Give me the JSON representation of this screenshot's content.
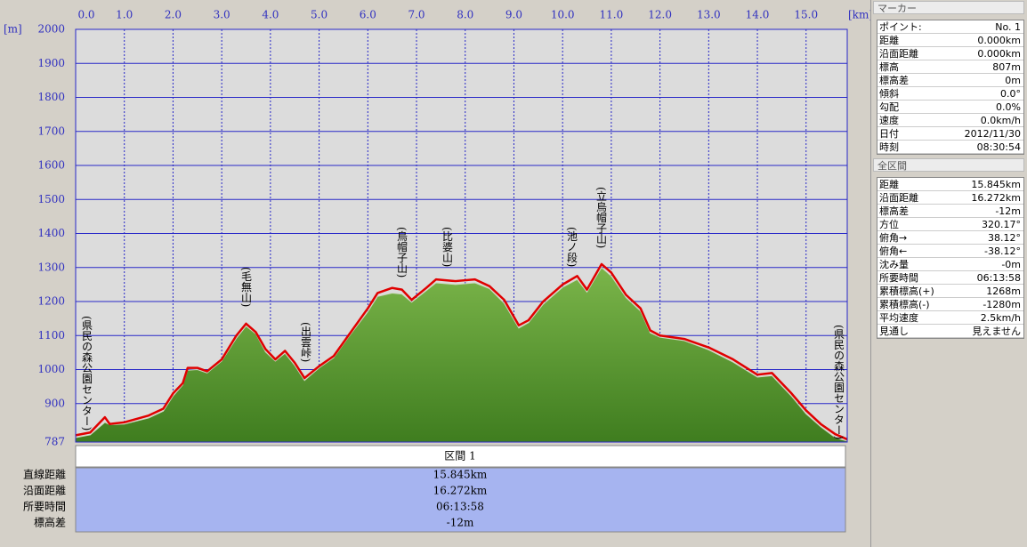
{
  "chart_data": {
    "type": "area",
    "x_unit": "[km]",
    "y_unit": "[m]",
    "x": [
      0,
      0.3,
      0.6,
      0.7,
      1.0,
      1.5,
      1.8,
      2.0,
      2.2,
      2.3,
      2.5,
      2.7,
      3.0,
      3.3,
      3.5,
      3.7,
      3.9,
      4.1,
      4.3,
      4.5,
      4.7,
      5.0,
      5.3,
      5.6,
      6.0,
      6.2,
      6.5,
      6.7,
      6.9,
      7.2,
      7.4,
      7.8,
      8.2,
      8.5,
      8.8,
      9.1,
      9.3,
      9.6,
      10.0,
      10.3,
      10.5,
      10.8,
      11.0,
      11.3,
      11.6,
      11.8,
      12.0,
      12.5,
      13.0,
      13.5,
      14.0,
      14.3,
      14.7,
      15.0,
      15.3,
      15.6,
      15.845
    ],
    "series": [
      {
        "type": "area",
        "color": "#5e9c2e",
        "values": [
          800,
          808,
          845,
          838,
          840,
          858,
          878,
          922,
          955,
          998,
          1000,
          990,
          1025,
          1092,
          1128,
          1105,
          1052,
          1025,
          1048,
          1012,
          968,
          1005,
          1035,
          1095,
          1170,
          1215,
          1225,
          1222,
          1198,
          1232,
          1255,
          1250,
          1255,
          1238,
          1195,
          1122,
          1138,
          1192,
          1242,
          1265,
          1228,
          1300,
          1275,
          1212,
          1172,
          1108,
          1095,
          1085,
          1058,
          1022,
          978,
          982,
          922,
          870,
          832,
          800,
          790
        ]
      },
      {
        "type": "line",
        "color": "#e00000",
        "values": [
          807,
          815,
          860,
          840,
          845,
          865,
          885,
          930,
          960,
          1005,
          1005,
          995,
          1030,
          1100,
          1135,
          1110,
          1060,
          1030,
          1055,
          1020,
          975,
          1010,
          1040,
          1100,
          1180,
          1225,
          1240,
          1235,
          1205,
          1240,
          1265,
          1260,
          1265,
          1245,
          1205,
          1130,
          1145,
          1200,
          1250,
          1275,
          1235,
          1310,
          1285,
          1220,
          1180,
          1115,
          1100,
          1090,
          1065,
          1030,
          985,
          990,
          930,
          880,
          840,
          810,
          795
        ]
      }
    ],
    "xlim": [
      0,
      15.845
    ],
    "xticks": [
      {
        "value": 0,
        "label": "0.0"
      },
      {
        "value": 1,
        "label": "1.0"
      },
      {
        "value": 2,
        "label": "2.0"
      },
      {
        "value": 3,
        "label": "3.0"
      },
      {
        "value": 4,
        "label": "4.0"
      },
      {
        "value": 5,
        "label": "5.0"
      },
      {
        "value": 6,
        "label": "6.0"
      },
      {
        "value": 7,
        "label": "7.0"
      },
      {
        "value": 8,
        "label": "8.0"
      },
      {
        "value": 9,
        "label": "9.0"
      },
      {
        "value": 10,
        "label": "10.0"
      },
      {
        "value": 11,
        "label": "11.0"
      },
      {
        "value": 12,
        "label": "12.0"
      },
      {
        "value": 13,
        "label": "13.0"
      },
      {
        "value": 14,
        "label": "14.0"
      },
      {
        "value": 15,
        "label": "15.0"
      }
    ],
    "ylim": [
      787,
      2000
    ],
    "yticks": [
      787,
      900,
      1000,
      1100,
      1200,
      1300,
      1400,
      1500,
      1600,
      1700,
      1800,
      1900,
      2000
    ],
    "grid": true,
    "annotations": [
      "(県民の森公園センター)",
      "(毛無山)",
      "(出雲峠)",
      "(烏帽子山)",
      "(比婆山)",
      "(池ノ段)",
      "(立烏帽子山)",
      "(県民の森公園センター)"
    ]
  },
  "marker_panel": {
    "title": "マーカー",
    "rows": [
      [
        "ポイント:",
        "No. 1"
      ],
      [
        "距離",
        "0.000km"
      ],
      [
        "沿面距離",
        "0.000km"
      ],
      [
        "標高",
        "807m"
      ],
      [
        "標高差",
        "0m"
      ],
      [
        "傾斜",
        "0.0°"
      ],
      [
        "勾配",
        "0.0%"
      ],
      [
        "速度",
        "0.0km/h"
      ],
      [
        "日付",
        "2012/11/30"
      ],
      [
        "時刻",
        "08:30:54"
      ]
    ]
  },
  "total_panel": {
    "title": "全区間",
    "rows": [
      [
        "距離",
        "15.845km"
      ],
      [
        "沿面距離",
        "16.272km"
      ],
      [
        "標高差",
        "-12m"
      ],
      [
        "方位",
        "320.17°"
      ],
      [
        "俯角→",
        "38.12°"
      ],
      [
        "俯角←",
        "-38.12°"
      ],
      [
        "沈み量",
        "-0m"
      ],
      [
        "所要時間",
        "06:13:58"
      ],
      [
        "累積標高(+)",
        "1268m"
      ],
      [
        "累積標高(-)",
        "-1280m"
      ],
      [
        "平均速度",
        "2.5km/h"
      ],
      [
        "見通し",
        "見えません"
      ]
    ]
  },
  "section_table": {
    "header": "区間 1",
    "rows": [
      [
        "直線距離",
        "15.845km"
      ],
      [
        "沿面距離",
        "16.272km"
      ],
      [
        "所要時間",
        "06:13:58"
      ],
      [
        "標高差",
        "-12m"
      ]
    ]
  }
}
